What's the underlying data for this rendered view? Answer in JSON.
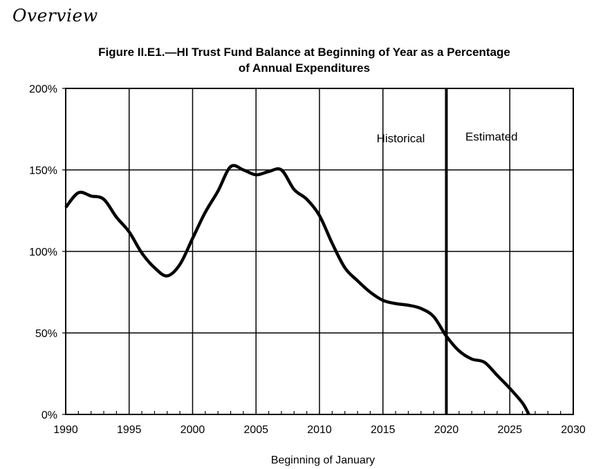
{
  "page": {
    "heading": "Overview"
  },
  "chart_data": {
    "type": "line",
    "title_line1": "Figure II.E1.—HI Trust Fund Balance at Beginning of Year as a Percentage",
    "title_line2": "of Annual Expenditures",
    "xlabel": "Beginning of January",
    "ylabel": "",
    "xlim": [
      1990,
      2030
    ],
    "ylim": [
      0,
      200
    ],
    "x_ticks": [
      1990,
      1995,
      2000,
      2005,
      2010,
      2015,
      2020,
      2025,
      2030
    ],
    "x_tick_labels": [
      "1990",
      "1995",
      "2000",
      "2005",
      "2010",
      "2015",
      "2020",
      "2025",
      "2030"
    ],
    "y_ticks": [
      0,
      50,
      100,
      150,
      200
    ],
    "y_tick_labels": [
      "0%",
      "50%",
      "100%",
      "150%",
      "200%"
    ],
    "grid": true,
    "divider_x": 2020,
    "annotations": {
      "historical": "Historical",
      "estimated": "Estimated"
    },
    "line_color": "#000000",
    "series": [
      {
        "x": [
          1990,
          1991,
          1992,
          1993,
          1994,
          1995,
          1996,
          1997,
          1998,
          1999,
          2000,
          2001,
          2002,
          2003,
          2004,
          2005,
          2006,
          2007,
          2008,
          2009,
          2010,
          2011,
          2012,
          2013,
          2014,
          2015,
          2016,
          2017,
          2018,
          2019,
          2020,
          2021,
          2022,
          2023,
          2024,
          2025,
          2026,
          2026.5
        ],
        "y": [
          127,
          136,
          134,
          132,
          121,
          112,
          99,
          90,
          85,
          92,
          108,
          124,
          137,
          152,
          150,
          147,
          149,
          150,
          138,
          132,
          122,
          105,
          90,
          82,
          75,
          70,
          68,
          67,
          65,
          60,
          48,
          39,
          34,
          32,
          24,
          16,
          7,
          0
        ]
      }
    ]
  }
}
